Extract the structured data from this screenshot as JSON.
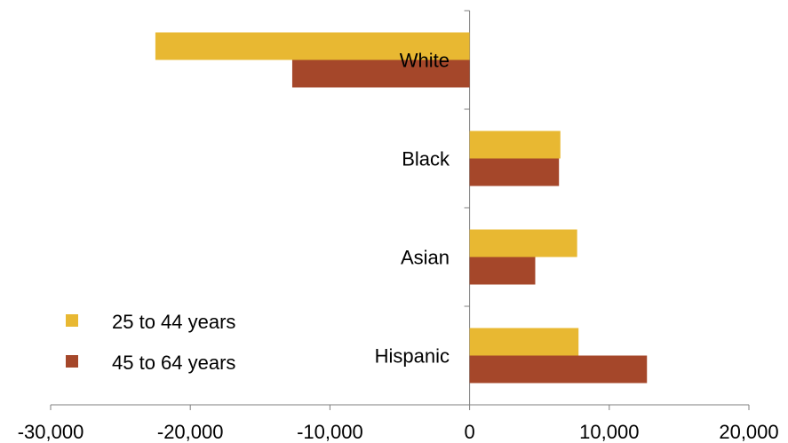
{
  "chart_data": {
    "type": "bar",
    "orientation": "horizontal",
    "title": "",
    "xlabel": "",
    "ylabel": "",
    "categories": [
      "White",
      "Black",
      "Asian",
      "Hispanic"
    ],
    "series": [
      {
        "name": "25 to 44 years",
        "color": "#E8B832",
        "values": [
          -22500,
          6500,
          7700,
          7800
        ]
      },
      {
        "name": "45 to 64 years",
        "color": "#A5472A",
        "values": [
          -12700,
          6400,
          4700,
          12700
        ]
      }
    ],
    "xlim": [
      -30000,
      20000
    ],
    "x_ticks": [
      -30000,
      -20000,
      -10000,
      0,
      10000,
      20000
    ],
    "x_tick_labels": [
      "-30,000",
      "-20,000",
      "-10,000",
      "0",
      "10,000",
      "20,000"
    ],
    "grid": false,
    "legend_position": "bottom-left"
  }
}
